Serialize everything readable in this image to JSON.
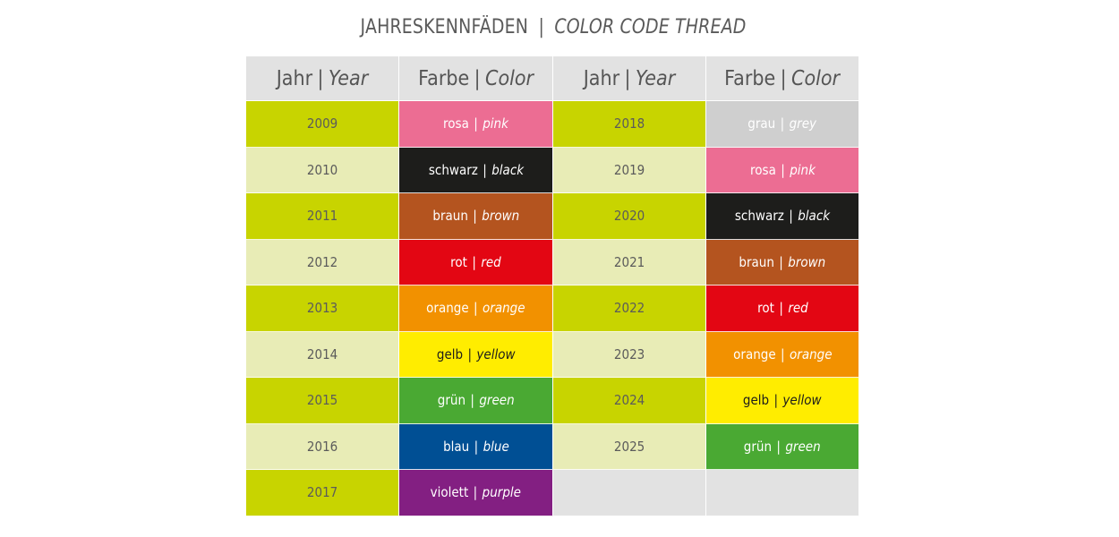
{
  "title": {
    "german": "JAHRESKENNFÄDEN",
    "separator": "|",
    "english": "COLOR CODE THREAD"
  },
  "headers": [
    {
      "de": "Jahr",
      "en": "Year"
    },
    {
      "de": "Farbe",
      "en": "Color"
    },
    {
      "de": "Jahr",
      "en": "Year"
    },
    {
      "de": "Farbe",
      "en": "Color"
    }
  ],
  "separator": "|",
  "left": [
    {
      "year": "2009",
      "de": "rosa",
      "en": "pink",
      "bg": "#ec6d93",
      "fg": "#ffffff"
    },
    {
      "year": "2010",
      "de": "schwarz",
      "en": "black",
      "bg": "#1d1d1b",
      "fg": "#ffffff"
    },
    {
      "year": "2011",
      "de": "braun",
      "en": "brown",
      "bg": "#b4541f",
      "fg": "#ffffff"
    },
    {
      "year": "2012",
      "de": "rot",
      "en": "red",
      "bg": "#e30613",
      "fg": "#ffffff"
    },
    {
      "year": "2013",
      "de": "orange",
      "en": "orange",
      "bg": "#f29100",
      "fg": "#ffffff"
    },
    {
      "year": "2014",
      "de": "gelb",
      "en": "yellow",
      "bg": "#ffed00",
      "fg": "#1d1d1b"
    },
    {
      "year": "2015",
      "de": "grün",
      "en": "green",
      "bg": "#4aa933",
      "fg": "#ffffff"
    },
    {
      "year": "2016",
      "de": "blau",
      "en": "blue",
      "bg": "#004f94",
      "fg": "#ffffff"
    },
    {
      "year": "2017",
      "de": "violett",
      "en": "purple",
      "bg": "#831f82",
      "fg": "#ffffff"
    }
  ],
  "right": [
    {
      "year": "2018",
      "de": "grau",
      "en": "grey",
      "bg": "#cfcfcf",
      "fg": "#ffffff"
    },
    {
      "year": "2019",
      "de": "rosa",
      "en": "pink",
      "bg": "#ec6d93",
      "fg": "#ffffff"
    },
    {
      "year": "2020",
      "de": "schwarz",
      "en": "black",
      "bg": "#1d1d1b",
      "fg": "#ffffff"
    },
    {
      "year": "2021",
      "de": "braun",
      "en": "brown",
      "bg": "#b4541f",
      "fg": "#ffffff"
    },
    {
      "year": "2022",
      "de": "rot",
      "en": "red",
      "bg": "#e30613",
      "fg": "#ffffff"
    },
    {
      "year": "2023",
      "de": "orange",
      "en": "orange",
      "bg": "#f29100",
      "fg": "#ffffff"
    },
    {
      "year": "2024",
      "de": "gelb",
      "en": "yellow",
      "bg": "#ffed00",
      "fg": "#1d1d1b"
    },
    {
      "year": "2025",
      "de": "grün",
      "en": "green",
      "bg": "#4aa933",
      "fg": "#ffffff"
    }
  ]
}
